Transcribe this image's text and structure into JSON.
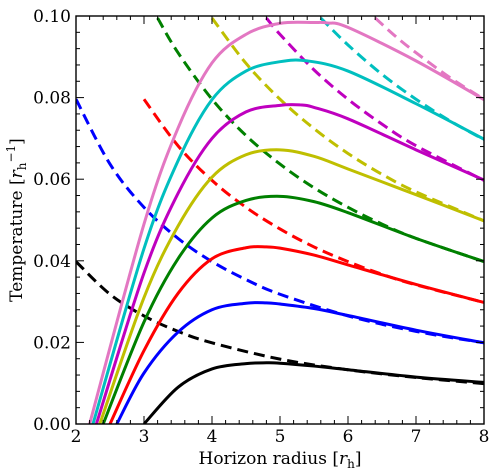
{
  "chart_data": {
    "type": "line",
    "xlabel": "Horizon radius [r_h]",
    "ylabel": "Temperature [r_h^-1]",
    "xlim": [
      2,
      8
    ],
    "ylim": [
      0,
      0.1
    ],
    "xticks": [
      "2",
      "3",
      "4",
      "5",
      "6",
      "7",
      "8"
    ],
    "yticks": [
      "0.00",
      "0.02",
      "0.04",
      "0.06",
      "0.08",
      "0.10"
    ],
    "series": [
      {
        "color": "#000000",
        "style": "solid",
        "x": [
          3.0,
          3.5,
          4.0,
          4.5,
          4.8,
          5.0,
          5.5,
          6.0,
          7.0,
          8.0
        ],
        "y": [
          0.0,
          0.009,
          0.0135,
          0.0148,
          0.015,
          0.0149,
          0.0142,
          0.0133,
          0.0115,
          0.0102
        ]
      },
      {
        "color": "#000000",
        "style": "dashed",
        "x": [
          2.0,
          2.5,
          3.0,
          3.5,
          4.0,
          5.0,
          6.0,
          7.0,
          8.0
        ],
        "y": [
          0.0398,
          0.0318,
          0.0265,
          0.0227,
          0.0199,
          0.0159,
          0.0133,
          0.0114,
          0.0099
        ]
      },
      {
        "color": "#0000ff",
        "style": "solid",
        "x": [
          2.6,
          3.0,
          3.5,
          4.0,
          4.5,
          4.8,
          5.0,
          5.5,
          6.0,
          7.0,
          8.0
        ],
        "y": [
          0.0,
          0.0125,
          0.0225,
          0.028,
          0.0296,
          0.0297,
          0.0294,
          0.0283,
          0.0266,
          0.023,
          0.0199
        ]
      },
      {
        "color": "#0000ff",
        "style": "dashed",
        "x": [
          2.0,
          2.5,
          3.0,
          3.5,
          4.0,
          4.5,
          5.0,
          6.0,
          7.0,
          8.0
        ],
        "y": [
          0.0796,
          0.0637,
          0.0531,
          0.0455,
          0.0398,
          0.0354,
          0.0318,
          0.0265,
          0.0227,
          0.0199
        ]
      },
      {
        "color": "#ff0000",
        "style": "solid",
        "x": [
          2.5,
          3.0,
          3.5,
          4.0,
          4.5,
          4.8,
          5.0,
          5.5,
          6.0,
          7.0,
          8.0
        ],
        "y": [
          0.0,
          0.018,
          0.032,
          0.0405,
          0.0432,
          0.0434,
          0.0431,
          0.0414,
          0.039,
          0.0342,
          0.0298
        ]
      },
      {
        "color": "#ff0000",
        "style": "dashed",
        "x": [
          3.0,
          3.5,
          4.0,
          4.5,
          5.0,
          5.5,
          6.0,
          6.5,
          7.0,
          8.0
        ],
        "y": [
          0.0796,
          0.0682,
          0.0597,
          0.0531,
          0.0478,
          0.0434,
          0.0398,
          0.0367,
          0.0341,
          0.0298
        ]
      },
      {
        "color": "#008000",
        "style": "solid",
        "x": [
          2.4,
          3.0,
          3.5,
          4.0,
          4.5,
          5.0,
          5.5,
          6.0,
          7.0,
          8.0
        ],
        "y": [
          0.0,
          0.025,
          0.0405,
          0.0505,
          0.0548,
          0.0558,
          0.0545,
          0.0518,
          0.0455,
          0.0398
        ]
      },
      {
        "color": "#008000",
        "style": "dashed",
        "x": [
          3.2,
          3.5,
          4.0,
          4.5,
          5.0,
          5.5,
          6.0,
          6.5,
          7.0,
          8.0
        ],
        "y": [
          0.0995,
          0.091,
          0.0796,
          0.0707,
          0.0637,
          0.0579,
          0.0531,
          0.049,
          0.0455,
          0.0398
        ]
      },
      {
        "color": "#bfbf00",
        "style": "solid",
        "x": [
          2.35,
          3.0,
          3.5,
          4.0,
          4.5,
          5.0,
          5.5,
          6.0,
          7.0,
          8.0
        ],
        "y": [
          0.0,
          0.031,
          0.0485,
          0.0605,
          0.066,
          0.0672,
          0.0656,
          0.0625,
          0.0562,
          0.0498
        ]
      },
      {
        "color": "#bfbf00",
        "style": "dashed",
        "x": [
          4.0,
          4.5,
          5.0,
          5.5,
          6.0,
          6.5,
          7.0,
          8.0
        ],
        "y": [
          0.0995,
          0.0884,
          0.0796,
          0.0724,
          0.0663,
          0.0612,
          0.0569,
          0.0498
        ]
      },
      {
        "color": "#bf00bf",
        "style": "solid",
        "x": [
          2.3,
          3.0,
          3.5,
          4.0,
          4.5,
          5.0,
          5.3,
          5.5,
          6.0,
          7.0,
          8.0
        ],
        "y": [
          0.0,
          0.037,
          0.0565,
          0.07,
          0.0765,
          0.0781,
          0.0782,
          0.0776,
          0.0748,
          0.0672,
          0.0598
        ]
      },
      {
        "color": "#bf00bf",
        "style": "dashed",
        "x": [
          4.8,
          5.0,
          5.5,
          6.0,
          6.5,
          7.0,
          8.0
        ],
        "y": [
          0.0995,
          0.0955,
          0.0868,
          0.0796,
          0.0735,
          0.0682,
          0.0597
        ]
      },
      {
        "color": "#00bfbf",
        "style": "solid",
        "x": [
          2.25,
          3.0,
          3.5,
          4.0,
          4.5,
          5.0,
          5.4,
          6.0,
          7.0,
          8.0
        ],
        "y": [
          0.0,
          0.043,
          0.0645,
          0.0795,
          0.0865,
          0.0888,
          0.089,
          0.0865,
          0.0785,
          0.0698
        ]
      },
      {
        "color": "#00bfbf",
        "style": "dashed",
        "x": [
          5.6,
          6.0,
          6.5,
          7.0,
          7.5,
          8.0
        ],
        "y": [
          0.0995,
          0.0929,
          0.0857,
          0.0796,
          0.0743,
          0.0697
        ]
      },
      {
        "color": "#e377c2",
        "style": "solid",
        "x": [
          2.2,
          3.0,
          3.5,
          4.0,
          4.5,
          5.0,
          5.5,
          5.7,
          6.0,
          7.0,
          8.0
        ],
        "y": [
          0.0,
          0.049,
          0.0725,
          0.0885,
          0.0955,
          0.0982,
          0.0984,
          0.0983,
          0.0972,
          0.089,
          0.0795
        ]
      },
      {
        "color": "#e377c2",
        "style": "dashed",
        "x": [
          6.4,
          6.7,
          7.0,
          7.5,
          8.0
        ],
        "y": [
          0.0995,
          0.095,
          0.091,
          0.0849,
          0.0796
        ]
      }
    ]
  }
}
